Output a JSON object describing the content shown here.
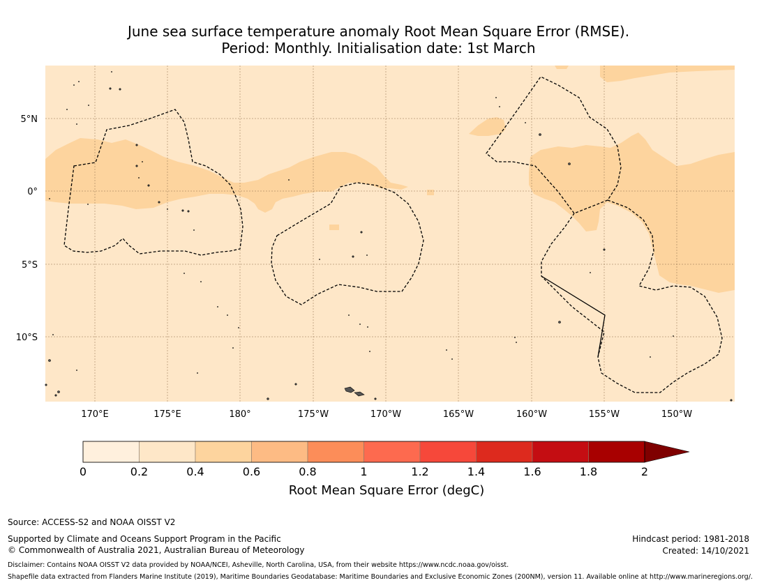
{
  "title": {
    "line1": "June sea surface temperature anomaly Root Mean Square Error (RMSE).",
    "line2": "Period: Monthly. Initialisation date: 1st March"
  },
  "map": {
    "lat_ticks": [
      "5°N",
      "0°",
      "5°S",
      "10°S"
    ],
    "lon_ticks": [
      "170°E",
      "175°E",
      "180°",
      "175°W",
      "170°W",
      "165°W",
      "160°W",
      "155°W",
      "150°W"
    ],
    "colors": {
      "ocean_base": "#fee7c8",
      "anomaly_band": "#fdd49e",
      "grid": "#8c6d4a",
      "boundary": "#000000",
      "land": "#666666"
    }
  },
  "colorbar": {
    "title": "Root Mean Square Error (degC)",
    "labels": [
      "0",
      "0.2",
      "0.4",
      "0.6",
      "0.8",
      "1",
      "1.2",
      "1.4",
      "1.6",
      "1.8",
      "2"
    ],
    "colors": [
      "#fff0dd",
      "#fee7c8",
      "#fdd49e",
      "#fdbb84",
      "#fc8d59",
      "#fd6a4f",
      "#f6483a",
      "#dd2a1e",
      "#c40d12",
      "#a80000",
      "#7f0000"
    ]
  },
  "footer": {
    "source": "Source: ACCESS-S2 and NOAA OISST V2",
    "supported": "Supported by Climate and Oceans Support Program in the Pacific",
    "copyright": "© Commonwealth of Australia 2021, Australian Bureau of Meteorology",
    "hindcast": "Hindcast period: 1981-2018",
    "created": "Created: 14/10/2021",
    "disclaimer": "Disclaimer: Contains NOAA OISST V2 data provided by NOAA/NCEI, Asheville, North Carolina, USA, from their website https://www.ncdc.noaa.gov/oisst.",
    "shapefile": "Shapefile data extracted from Flanders Marine Institute (2019), Maritime Boundaries Geodatabase: Maritime Boundaries and Exclusive Economic Zones (200NM), version 11. Available online at http://www.marineregions.org/."
  }
}
